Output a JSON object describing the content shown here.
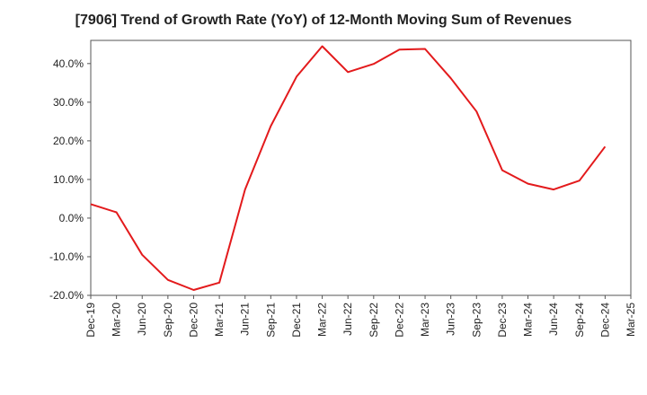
{
  "chart_data": {
    "type": "line",
    "title": "[7906]  Trend of Growth Rate (YoY) of 12-Month Moving Sum of Revenues",
    "xlabel": "",
    "ylabel": "",
    "ylim": [
      -20,
      46
    ],
    "yticks": [
      40,
      30,
      20,
      10,
      0,
      -10,
      -20
    ],
    "ytick_labels": [
      "40.0%",
      "30.0%",
      "20.0%",
      "10.0%",
      "0.0%",
      "-10.0%",
      "-20.0%"
    ],
    "categories": [
      "Dec-19",
      "Mar-20",
      "Jun-20",
      "Sep-20",
      "Dec-20",
      "Mar-21",
      "Jun-21",
      "Sep-21",
      "Dec-21",
      "Mar-22",
      "Jun-22",
      "Sep-22",
      "Dec-22",
      "Mar-23",
      "Jun-23",
      "Sep-23",
      "Dec-23",
      "Mar-24",
      "Jun-24",
      "Sep-24",
      "Dec-24",
      "Mar-25"
    ],
    "series": [
      {
        "color": "#e31a1c",
        "values": [
          3.6,
          1.5,
          -9.5,
          -16.0,
          -18.6,
          -16.7,
          7.4,
          23.8,
          36.6,
          44.5,
          37.8,
          39.9,
          43.6,
          43.8,
          36.2,
          27.6,
          12.4,
          8.9,
          7.4,
          9.7,
          18.5,
          null
        ]
      }
    ],
    "grid": true,
    "legend": "none"
  }
}
